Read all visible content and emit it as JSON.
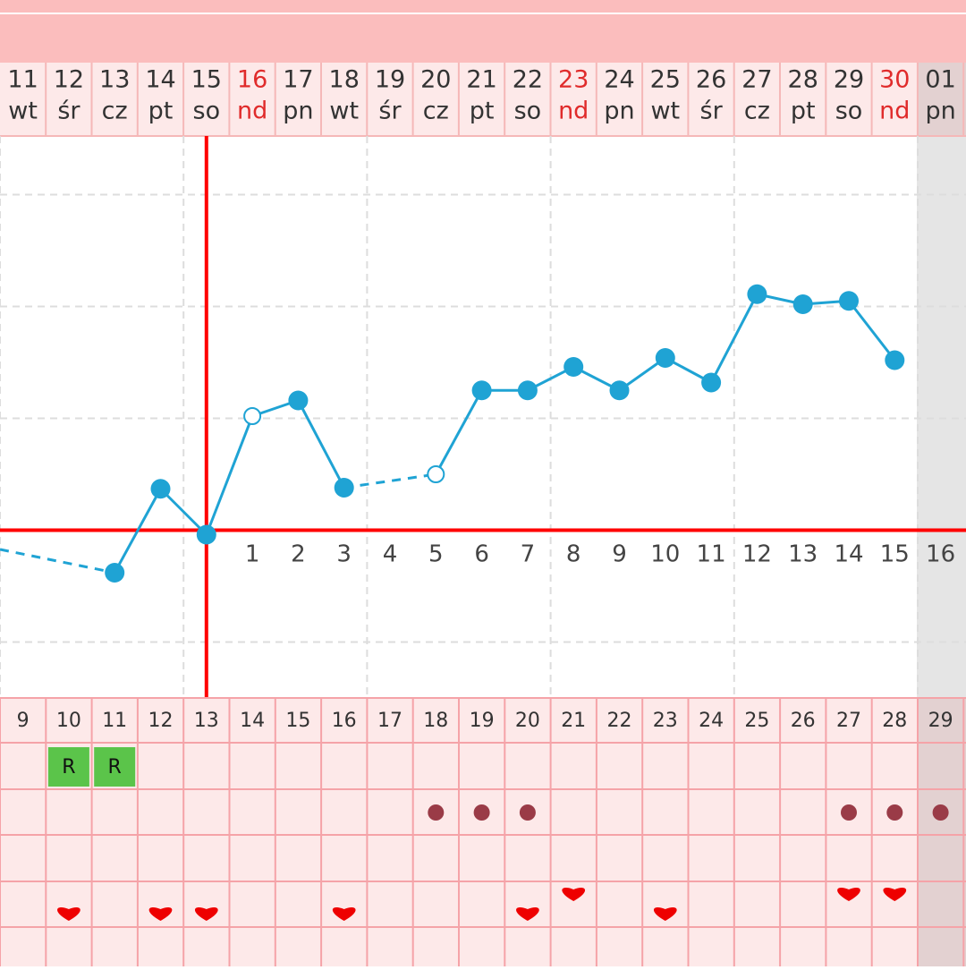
{
  "days": [
    {
      "date": "11",
      "weekday": "wt",
      "red": false
    },
    {
      "date": "12",
      "weekday": "śr",
      "red": false
    },
    {
      "date": "13",
      "weekday": "cz",
      "red": false
    },
    {
      "date": "14",
      "weekday": "pt",
      "red": false
    },
    {
      "date": "15",
      "weekday": "so",
      "red": false
    },
    {
      "date": "16",
      "weekday": "nd",
      "red": true
    },
    {
      "date": "17",
      "weekday": "pn",
      "red": false
    },
    {
      "date": "18",
      "weekday": "wt",
      "red": false
    },
    {
      "date": "19",
      "weekday": "śr",
      "red": false
    },
    {
      "date": "20",
      "weekday": "cz",
      "red": false
    },
    {
      "date": "21",
      "weekday": "pt",
      "red": false
    },
    {
      "date": "22",
      "weekday": "so",
      "red": false
    },
    {
      "date": "23",
      "weekday": "nd",
      "red": true
    },
    {
      "date": "24",
      "weekday": "pn",
      "red": false
    },
    {
      "date": "25",
      "weekday": "wt",
      "red": false
    },
    {
      "date": "26",
      "weekday": "śr",
      "red": false
    },
    {
      "date": "27",
      "weekday": "cz",
      "red": false
    },
    {
      "date": "28",
      "weekday": "pt",
      "red": false
    },
    {
      "date": "29",
      "weekday": "so",
      "red": false
    },
    {
      "date": "30",
      "weekday": "nd",
      "red": true
    },
    {
      "date": "01",
      "weekday": "pn",
      "red": false
    }
  ],
  "chart_data": {
    "type": "line",
    "color": "#1fa3d4",
    "line_color": "#ff0000",
    "values": [
      null,
      null,
      -0.38,
      0.37,
      -0.04,
      1.02,
      1.16,
      0.38,
      null,
      0.5,
      1.25,
      1.25,
      1.46,
      1.25,
      1.54,
      1.32,
      2.11,
      2.02,
      2.05,
      1.52,
      null
    ],
    "open": [
      false,
      false,
      false,
      false,
      false,
      true,
      false,
      false,
      false,
      true,
      false,
      false,
      false,
      false,
      false,
      false,
      false,
      false,
      false,
      false,
      false
    ],
    "ylim": [
      -1.5,
      3.5
    ],
    "yticks": [
      -1,
      1,
      2,
      3
    ],
    "cover_line": 0,
    "ovulation_day": 4,
    "dpo": [
      null,
      null,
      null,
      null,
      null,
      "1",
      "2",
      "3",
      "4",
      "5",
      "6",
      "7",
      "8",
      "9",
      "10",
      "11",
      "12",
      "13",
      "14",
      "15",
      "16"
    ]
  },
  "table": {
    "cycle_days": [
      "9",
      "10",
      "11",
      "12",
      "13",
      "14",
      "15",
      "16",
      "17",
      "18",
      "19",
      "20",
      "21",
      "22",
      "23",
      "24",
      "25",
      "26",
      "27",
      "28",
      "29"
    ],
    "badges": [
      null,
      "R",
      "R",
      null,
      null,
      null,
      null,
      null,
      null,
      null,
      null,
      null,
      null,
      null,
      null,
      null,
      null,
      null,
      null,
      null,
      null
    ],
    "dots": [
      false,
      false,
      false,
      false,
      false,
      false,
      false,
      false,
      false,
      true,
      true,
      true,
      false,
      false,
      false,
      false,
      false,
      false,
      true,
      true,
      true
    ],
    "hearts": [
      0,
      1,
      0,
      1,
      1,
      0,
      0,
      1,
      0,
      0,
      0,
      1,
      2,
      0,
      1,
      0,
      0,
      0,
      2,
      2,
      0
    ]
  }
}
